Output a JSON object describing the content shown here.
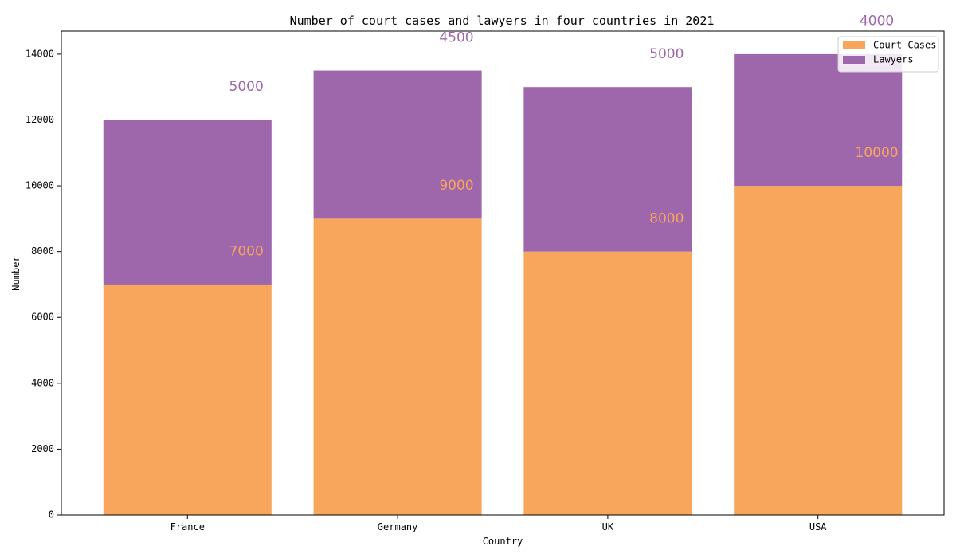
{
  "chart_data": {
    "type": "bar",
    "stacked": true,
    "title": "Number of court cases and lawyers in four countries in 2021",
    "xlabel": "Country",
    "ylabel": "Number",
    "categories": [
      "France",
      "Germany",
      "UK",
      "USA"
    ],
    "series": [
      {
        "name": "Court Cases",
        "values": [
          7000,
          9000,
          8000,
          10000
        ],
        "color": "#f7a65c"
      },
      {
        "name": "Lawyers",
        "values": [
          5000,
          4500,
          5000,
          4000
        ],
        "color": "#9e67ab"
      }
    ],
    "ylim": [
      0,
      14700
    ],
    "yticks": [
      0,
      2000,
      4000,
      6000,
      8000,
      10000,
      12000,
      14000
    ],
    "grid": false,
    "legend_position": "top-right"
  }
}
